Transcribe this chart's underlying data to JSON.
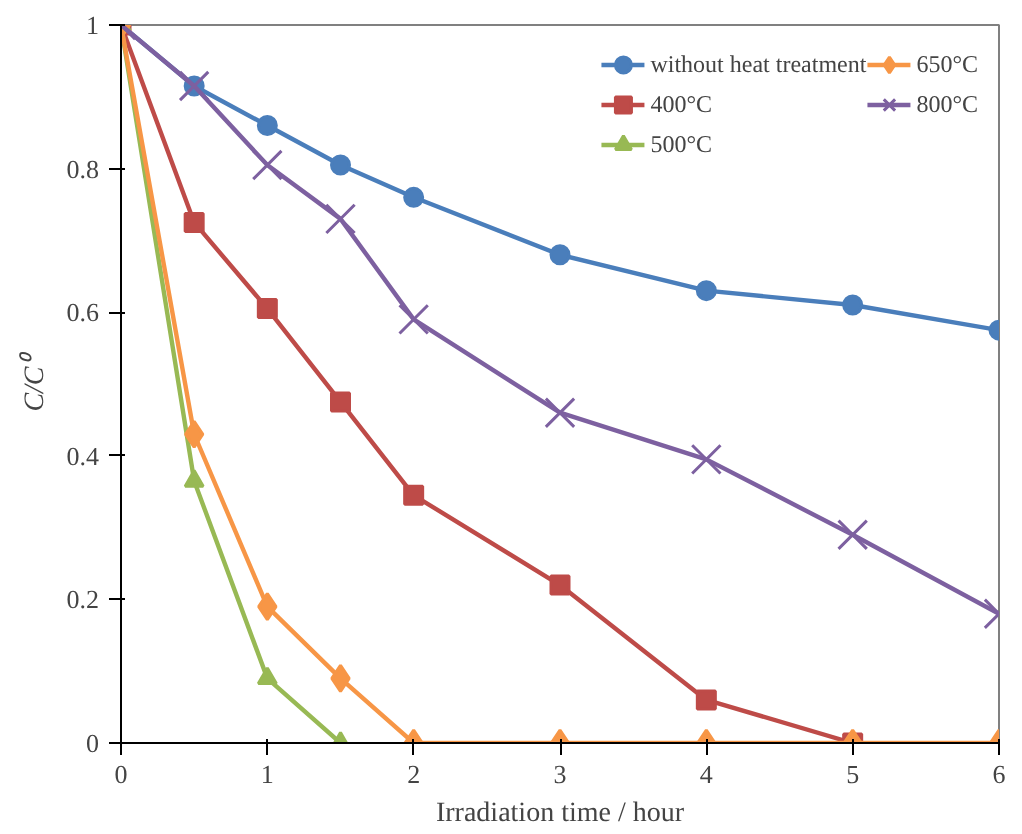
{
  "chart_data": {
    "type": "line",
    "xlabel": "Irradiation time / hour",
    "ylabel": "C/C⁰",
    "xlim": [
      0,
      6
    ],
    "ylim": [
      0,
      1
    ],
    "xticks": [
      0,
      1,
      2,
      3,
      4,
      5,
      6
    ],
    "yticks": [
      0,
      0.2,
      0.4,
      0.6,
      0.8,
      1
    ],
    "grid": false,
    "legend": "top right",
    "series": [
      {
        "name": "without heat treatment",
        "color": "#4a7ebb",
        "marker": "circle",
        "x": [
          0,
          0.5,
          1,
          1.5,
          2,
          3,
          4,
          5,
          6
        ],
        "values": [
          1,
          0.915,
          0.86,
          0.805,
          0.76,
          0.68,
          0.63,
          0.61,
          0.575
        ]
      },
      {
        "name": "400°C",
        "color": "#be4b48",
        "marker": "square",
        "x": [
          0,
          0.5,
          1,
          1.5,
          2,
          3,
          4,
          5
        ],
        "values": [
          1,
          0.725,
          0.605,
          0.475,
          0.345,
          0.22,
          0.06,
          0
        ]
      },
      {
        "name": "500°C",
        "color": "#98b954",
        "marker": "triangle",
        "x": [
          0,
          0.5,
          1,
          1.5
        ],
        "values": [
          1,
          0.365,
          0.09,
          0
        ]
      },
      {
        "name": "650°C",
        "color": "#f79646",
        "marker": "diamond",
        "x": [
          0,
          0.5,
          1,
          1.5,
          2,
          3,
          4,
          5,
          6
        ],
        "values": [
          1,
          0.43,
          0.19,
          0.09,
          0,
          0,
          0,
          0,
          0
        ]
      },
      {
        "name": "800°C",
        "color": "#7d60a0",
        "marker": "cross",
        "x": [
          0,
          0.5,
          1,
          1.5,
          2,
          3,
          4,
          5,
          6
        ],
        "values": [
          1,
          0.915,
          0.805,
          0.73,
          0.59,
          0.46,
          0.395,
          0.29,
          0.18
        ]
      }
    ]
  }
}
